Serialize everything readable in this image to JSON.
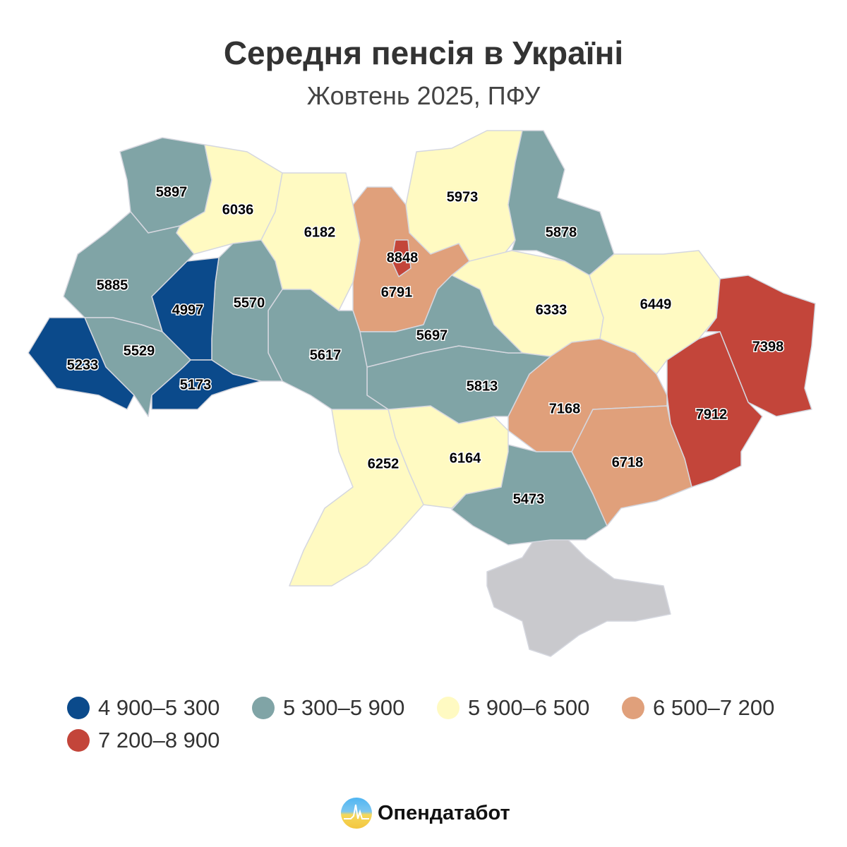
{
  "header": {
    "title": "Середня пенсія в Україні",
    "subtitle": "Жовтень 2025, ПФУ"
  },
  "colors": {
    "bin1": "#0b4a8b",
    "bin2": "#80a4a6",
    "bin3": "#fffac2",
    "bin4": "#e0a07b",
    "bin5": "#c3453a",
    "no_data": "#c9c9cd"
  },
  "legend": [
    {
      "label": "4 900–5 300",
      "color": "#0b4a8b"
    },
    {
      "label": "5 300–5 900",
      "color": "#80a4a6"
    },
    {
      "label": "5 900–6 500",
      "color": "#fffac2"
    },
    {
      "label": "6 500–7 200",
      "color": "#e0a07b"
    },
    {
      "label": "7 200–8 900",
      "color": "#c3453a"
    }
  ],
  "regions": {
    "volyn": "5897",
    "rivne": "6036",
    "zhytomyr": "6182",
    "kyiv_oblast": "6791",
    "kyiv_city": "8848",
    "chernihiv": "5973",
    "sumy": "5878",
    "poltava": "6333",
    "kharkiv": "6449",
    "luhansk": "7398",
    "donetsk": "7912",
    "zaporizhzhia": "6718",
    "dnipro": "7168",
    "kherson": "5473",
    "mykolaiv": "6164",
    "odesa": "6252",
    "kirovohrad": "5813",
    "cherkasy": "5697",
    "vinnytsia": "5617",
    "khmelnytskyi": "5570",
    "ternopil": "4997",
    "lviv": "5885",
    "ivano_frankivsk": "5529",
    "zakarpattia": "5233",
    "chernivtsi": "5173"
  },
  "footer": {
    "brand": "Опендатабот"
  }
}
